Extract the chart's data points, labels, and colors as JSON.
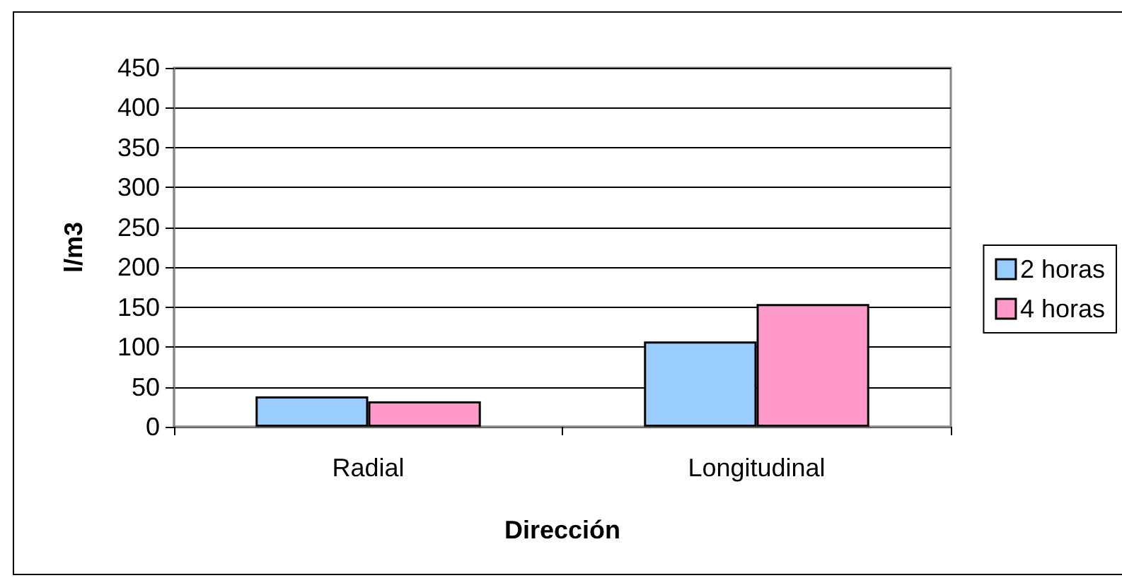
{
  "chart_data": {
    "type": "bar",
    "xlabel": "Dirección",
    "ylabel": "l/m3",
    "categories": [
      "Radial",
      "Longitudinal"
    ],
    "series": [
      {
        "name": "2 horas",
        "color": "#99ccff",
        "values": [
          38,
          107
        ]
      },
      {
        "name": "4 horas",
        "color": "#ff99cc",
        "values": [
          32,
          154
        ]
      }
    ],
    "ylim": [
      0,
      450
    ],
    "yticks": [
      0,
      50,
      100,
      150,
      200,
      250,
      300,
      350,
      400,
      450
    ],
    "grid": "y",
    "legend": "right"
  }
}
